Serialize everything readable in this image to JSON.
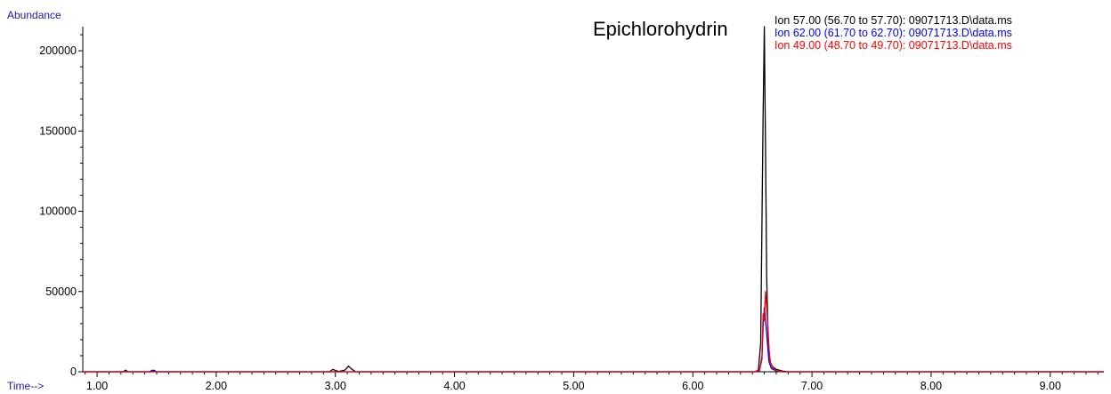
{
  "chart_data": {
    "type": "line",
    "ylabel": "Abundance",
    "xlabel": "Time-->",
    "annotation": "Epichlorohydrin",
    "xlim": [
      0.88,
      9.45
    ],
    "ylim": [
      0,
      215000
    ],
    "x_ticks": [
      "1.00",
      "2.00",
      "3.00",
      "4.00",
      "5.00",
      "6.00",
      "7.00",
      "8.00",
      "9.00"
    ],
    "x_tick_values": [
      1,
      2,
      3,
      4,
      5,
      6,
      7,
      8,
      9
    ],
    "y_ticks": [
      "0",
      "50000",
      "100000",
      "150000",
      "200000"
    ],
    "y_tick_values": [
      0,
      50000,
      100000,
      150000,
      200000
    ],
    "grid": false,
    "legend_position": "top-right",
    "series": [
      {
        "name": "Ion 57.00 (56.70 to 57.70): 09071713.D\\data.ms",
        "color": "#000000",
        "x": [
          0.88,
          1.22,
          1.24,
          1.26,
          1.45,
          1.47,
          1.49,
          2.95,
          2.98,
          3.0,
          3.03,
          3.08,
          3.11,
          3.14,
          3.17,
          6.52,
          6.55,
          6.57,
          6.59,
          6.6,
          6.61,
          6.62,
          6.63,
          6.64,
          6.65,
          6.67,
          6.7,
          6.75,
          6.8,
          9.45
        ],
        "values": [
          0,
          0,
          1000,
          0,
          0,
          800,
          0,
          0,
          1500,
          800,
          200,
          1000,
          3500,
          1500,
          0,
          0,
          1000,
          18000,
          160000,
          215000,
          140000,
          60000,
          25000,
          12000,
          6000,
          3000,
          1500,
          500,
          0,
          0
        ]
      },
      {
        "name": "Ion 62.00 (61.70 to 62.70): 09071713.D\\data.ms",
        "color": "#0000ff",
        "x": [
          0.88,
          1.44,
          1.46,
          1.48,
          1.5,
          6.52,
          6.56,
          6.58,
          6.59,
          6.6,
          6.61,
          6.62,
          6.63,
          6.64,
          6.66,
          6.7,
          6.75,
          9.45
        ],
        "values": [
          0,
          0,
          900,
          900,
          0,
          0,
          800,
          8000,
          28000,
          40000,
          32000,
          24000,
          14000,
          6000,
          2000,
          500,
          0,
          0
        ]
      },
      {
        "name": "Ion 49.00 (48.70 to 49.70): 09071713.D\\data.ms",
        "color": "#ff0000",
        "x": [
          0.88,
          6.52,
          6.56,
          6.58,
          6.59,
          6.6,
          6.61,
          6.62,
          6.63,
          6.64,
          6.65,
          6.67,
          6.7,
          6.75,
          9.45
        ],
        "values": [
          0,
          0,
          900,
          10000,
          36000,
          32000,
          50000,
          40000,
          28000,
          14000,
          6000,
          2500,
          800,
          0,
          0
        ]
      }
    ]
  }
}
